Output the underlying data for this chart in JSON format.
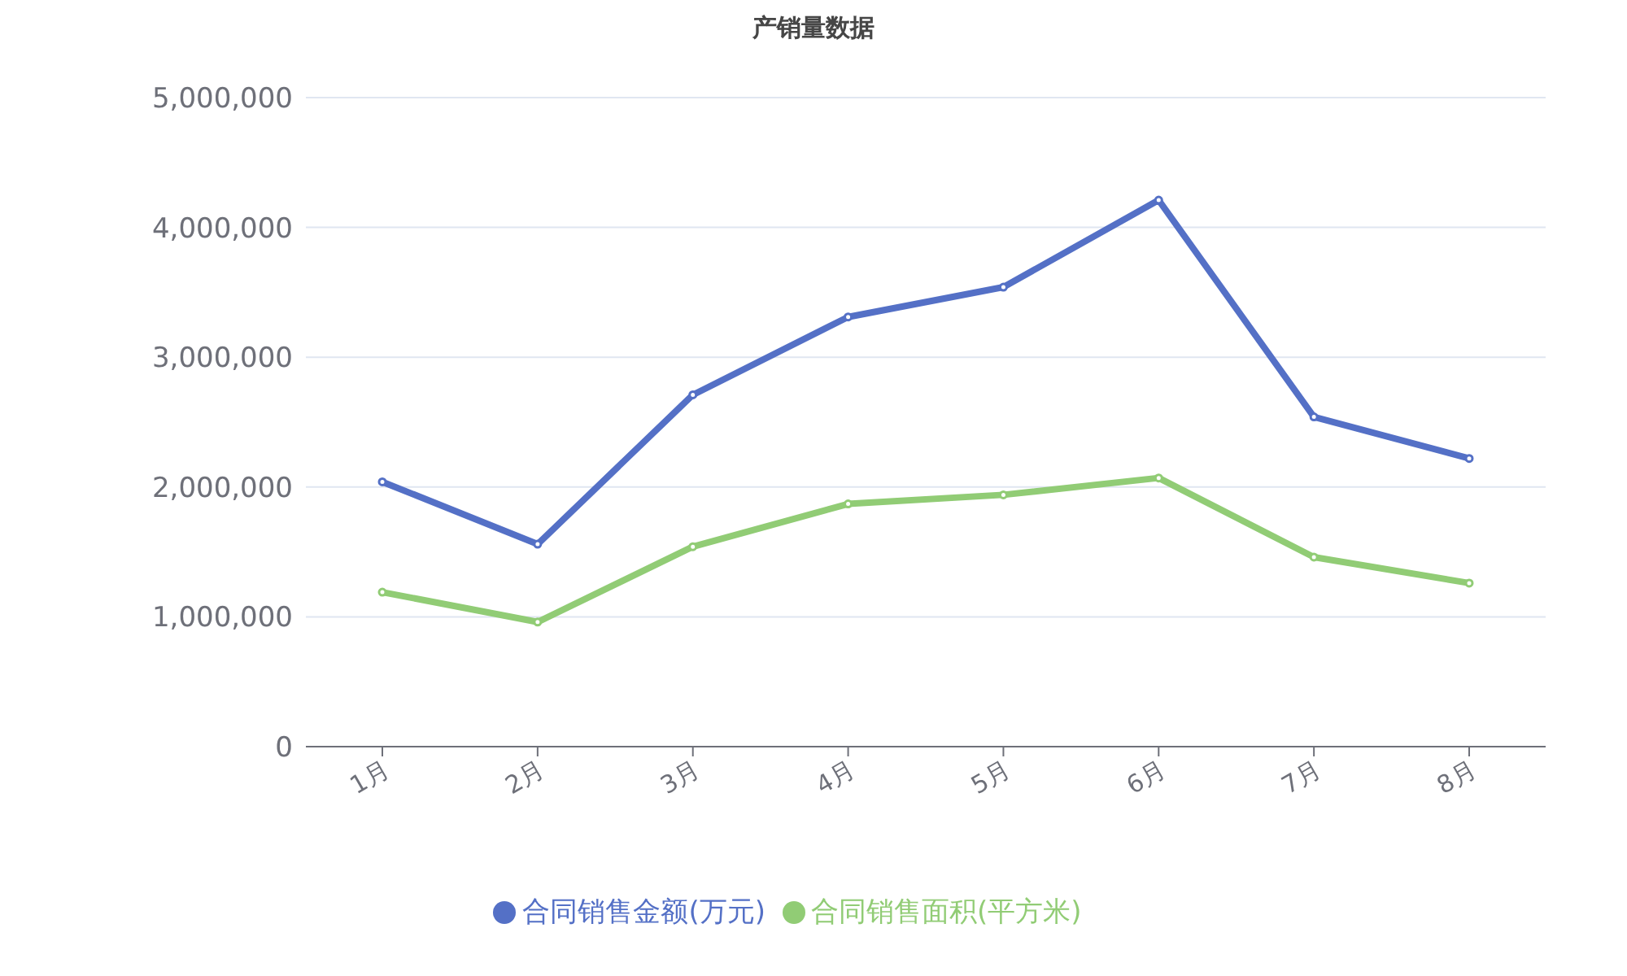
{
  "chart_data": {
    "type": "line",
    "title": "产销量数据",
    "categories": [
      "1月",
      "2月",
      "3月",
      "4月",
      "5月",
      "6月",
      "7月",
      "8月"
    ],
    "series": [
      {
        "name": "合同销售金额(万元)",
        "color": "#5470c6",
        "values": [
          2040000,
          1560000,
          2710000,
          3310000,
          3540000,
          4210000,
          2540000,
          2220000
        ]
      },
      {
        "name": "合同销售面积(平方米)",
        "color": "#91cc75",
        "values": [
          1190000,
          960000,
          1540000,
          1870000,
          1940000,
          2070000,
          1460000,
          1260000
        ]
      }
    ],
    "ylim": [
      0,
      5000000
    ],
    "yticks": [
      {
        "value": 0,
        "label": "0"
      },
      {
        "value": 1000000,
        "label": "1,000,000"
      },
      {
        "value": 2000000,
        "label": "2,000,000"
      },
      {
        "value": 3000000,
        "label": "3,000,000"
      },
      {
        "value": 4000000,
        "label": "4,000,000"
      },
      {
        "value": 5000000,
        "label": "5,000,000"
      }
    ],
    "grid": "y",
    "legend": "bottom",
    "marker": "circle",
    "line_style": "solid"
  }
}
